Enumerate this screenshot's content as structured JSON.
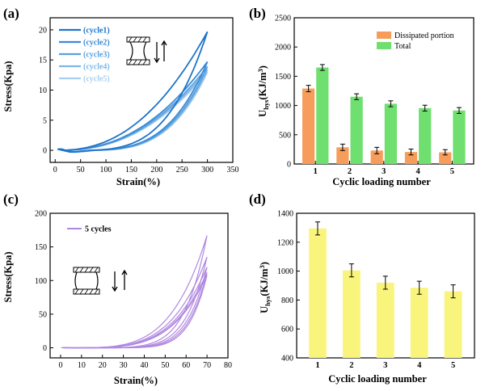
{
  "chart_data": [
    {
      "id": "a",
      "panel_label": "(a)",
      "type": "line",
      "xlabel": "Strain(%)",
      "ylabel": "Stress(Kpa)",
      "xlim": [
        -10,
        350
      ],
      "ylim": [
        -2,
        22
      ],
      "xticks": [
        0,
        50,
        100,
        150,
        200,
        250,
        300,
        350
      ],
      "yticks": [
        0,
        5,
        10,
        15,
        20
      ],
      "legend_position": "top-left",
      "series": [
        {
          "name": "(cycle1)",
          "color": "#1f74c9",
          "peak_stress": 19.7,
          "max_strain": 300,
          "residual_strain": 30
        },
        {
          "name": "(cycle2)",
          "color": "#3b8ad6",
          "peak_stress": 14.7,
          "max_strain": 300,
          "residual_strain": 35
        },
        {
          "name": "(cycle3)",
          "color": "#5aa0df",
          "peak_stress": 13.9,
          "max_strain": 300,
          "residual_strain": 38
        },
        {
          "name": "(cycle4)",
          "color": "#7fb7e8",
          "peak_stress": 13.4,
          "max_strain": 300,
          "residual_strain": 40
        },
        {
          "name": "(cycle5)",
          "color": "#a9cff0",
          "peak_stress": 13.0,
          "max_strain": 300,
          "residual_strain": 42
        }
      ]
    },
    {
      "id": "b",
      "panel_label": "(b)",
      "type": "bar",
      "xlabel": "Cyclic loading number",
      "ylabel": "U",
      "ylabel_sub": "hys",
      "ylabel_unit": "(KJ/m",
      "ylabel_sup": "3",
      "ylabel_close": ")",
      "categories": [
        "1",
        "2",
        "3",
        "4",
        "5"
      ],
      "ylim": [
        0,
        2500
      ],
      "yticks": [
        0,
        500,
        1000,
        1500,
        2000,
        2500
      ],
      "legend_position": "top-right",
      "series": [
        {
          "name": "Dissipated portion",
          "color": "#f79d5c",
          "values": [
            1290,
            285,
            230,
            205,
            200
          ],
          "errors": [
            55,
            55,
            55,
            50,
            45
          ]
        },
        {
          "name": "Total",
          "color": "#6fe06f",
          "values": [
            1650,
            1150,
            1030,
            955,
            915
          ],
          "errors": [
            50,
            50,
            50,
            50,
            50
          ]
        }
      ]
    },
    {
      "id": "c",
      "panel_label": "(c)",
      "type": "line",
      "xlabel": "Strain(%)",
      "ylabel": "Stress(Kpa)",
      "xlim": [
        -5,
        80
      ],
      "ylim": [
        -15,
        200
      ],
      "xticks": [
        0,
        10,
        20,
        30,
        40,
        50,
        60,
        70,
        80
      ],
      "yticks": [
        0,
        50,
        100,
        150,
        200
      ],
      "legend_position": "top-left",
      "series": [
        {
          "name": "5 cycles",
          "color": "#b088e0",
          "peaks": [
            167,
            135,
            120,
            112,
            108
          ],
          "max_strain": 70
        }
      ]
    },
    {
      "id": "d",
      "panel_label": "(d)",
      "type": "bar",
      "xlabel": "Cyclic loading number",
      "ylabel": "U",
      "ylabel_sub": "hys",
      "ylabel_unit": "(KJ/m",
      "ylabel_sup": "3",
      "ylabel_close": ")",
      "categories": [
        "1",
        "2",
        "3",
        "4",
        "5"
      ],
      "ylim": [
        400,
        1400
      ],
      "yticks": [
        400,
        600,
        800,
        1000,
        1200,
        1400
      ],
      "series": [
        {
          "name": "Uhys",
          "color": "#f9f57c",
          "values": [
            1295,
            1005,
            920,
            885,
            860
          ],
          "errors": [
            45,
            45,
            45,
            45,
            45
          ]
        }
      ]
    }
  ],
  "colors": {
    "axis": "#000000",
    "inset_hatch": "#000000"
  }
}
